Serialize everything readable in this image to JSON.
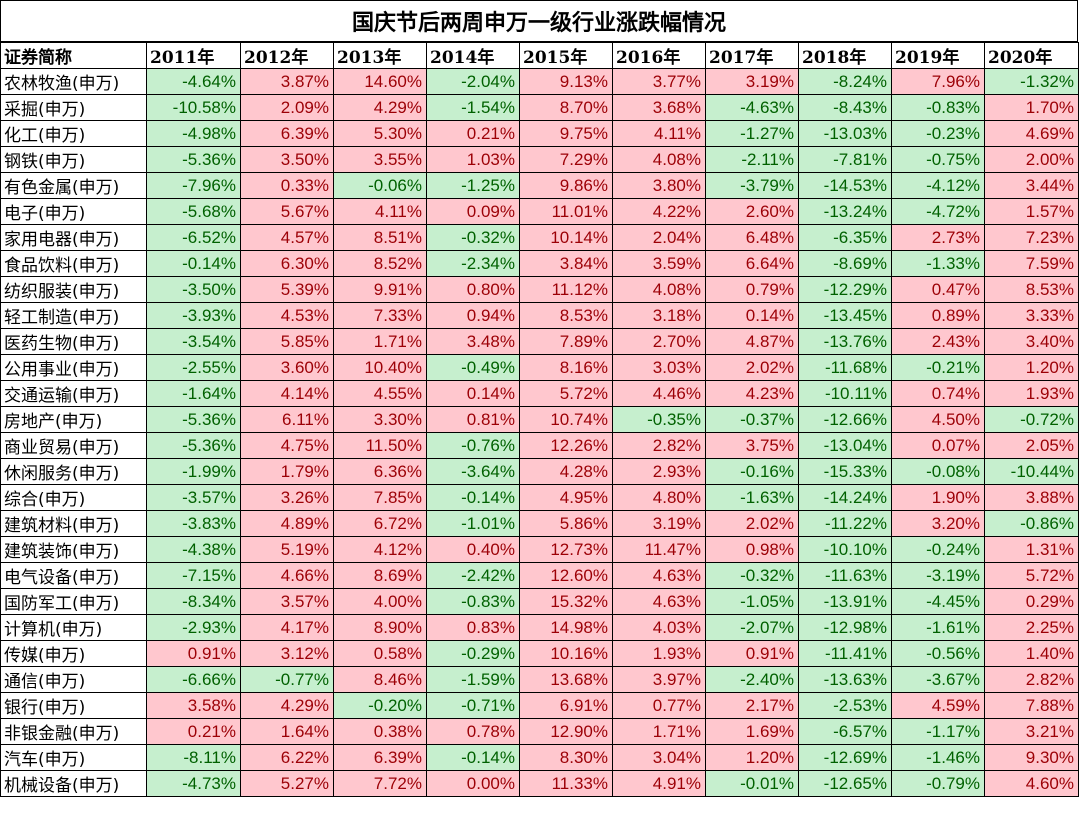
{
  "chart_data": {
    "type": "table",
    "title": "国庆节后两周申万一级行业涨跌幅情况",
    "header_first": "证券简称",
    "years": [
      "2011年",
      "2012年",
      "2013年",
      "2014年",
      "2015年",
      "2016年",
      "2017年",
      "2018年",
      "2019年",
      "2020年"
    ],
    "colors": {
      "positive_bg": "#ffc7ce",
      "positive_text": "#9c0006",
      "negative_bg": "#c6efce",
      "negative_text": "#006100"
    },
    "rows": [
      {
        "name": "农林牧渔(申万)",
        "values": [
          "-4.64%",
          "3.87%",
          "14.60%",
          "-2.04%",
          "9.13%",
          "3.77%",
          "3.19%",
          "-8.24%",
          "7.96%",
          "-1.32%"
        ]
      },
      {
        "name": "采掘(申万)",
        "values": [
          "-10.58%",
          "2.09%",
          "4.29%",
          "-1.54%",
          "8.70%",
          "3.68%",
          "-4.63%",
          "-8.43%",
          "-0.83%",
          "1.70%"
        ]
      },
      {
        "name": "化工(申万)",
        "values": [
          "-4.98%",
          "6.39%",
          "5.30%",
          "0.21%",
          "9.75%",
          "4.11%",
          "-1.27%",
          "-13.03%",
          "-0.23%",
          "4.69%"
        ]
      },
      {
        "name": "钢铁(申万)",
        "values": [
          "-5.36%",
          "3.50%",
          "3.55%",
          "1.03%",
          "7.29%",
          "4.08%",
          "-2.11%",
          "-7.81%",
          "-0.75%",
          "2.00%"
        ]
      },
      {
        "name": "有色金属(申万)",
        "values": [
          "-7.96%",
          "0.33%",
          "-0.06%",
          "-1.25%",
          "9.86%",
          "3.80%",
          "-3.79%",
          "-14.53%",
          "-4.12%",
          "3.44%"
        ]
      },
      {
        "name": "电子(申万)",
        "values": [
          "-5.68%",
          "5.67%",
          "4.11%",
          "0.09%",
          "11.01%",
          "4.22%",
          "2.60%",
          "-13.24%",
          "-4.72%",
          "1.57%"
        ]
      },
      {
        "name": "家用电器(申万)",
        "values": [
          "-6.52%",
          "4.57%",
          "8.51%",
          "-0.32%",
          "10.14%",
          "2.04%",
          "6.48%",
          "-6.35%",
          "2.73%",
          "7.23%"
        ]
      },
      {
        "name": "食品饮料(申万)",
        "values": [
          "-0.14%",
          "6.30%",
          "8.52%",
          "-2.34%",
          "3.84%",
          "3.59%",
          "6.64%",
          "-8.69%",
          "-1.33%",
          "7.59%"
        ]
      },
      {
        "name": "纺织服装(申万)",
        "values": [
          "-3.50%",
          "5.39%",
          "9.91%",
          "0.80%",
          "11.12%",
          "4.08%",
          "0.79%",
          "-12.29%",
          "0.47%",
          "8.53%"
        ]
      },
      {
        "name": "轻工制造(申万)",
        "values": [
          "-3.93%",
          "4.53%",
          "7.33%",
          "0.94%",
          "8.53%",
          "3.18%",
          "0.14%",
          "-13.45%",
          "0.89%",
          "3.33%"
        ]
      },
      {
        "name": "医药生物(申万)",
        "values": [
          "-3.54%",
          "5.85%",
          "1.71%",
          "3.48%",
          "7.89%",
          "2.70%",
          "4.87%",
          "-13.76%",
          "2.43%",
          "3.40%"
        ]
      },
      {
        "name": "公用事业(申万)",
        "values": [
          "-2.55%",
          "3.60%",
          "10.40%",
          "-0.49%",
          "8.16%",
          "3.03%",
          "2.02%",
          "-11.68%",
          "-0.21%",
          "1.20%"
        ]
      },
      {
        "name": "交通运输(申万)",
        "values": [
          "-1.64%",
          "4.14%",
          "4.55%",
          "0.14%",
          "5.72%",
          "4.46%",
          "4.23%",
          "-10.11%",
          "0.74%",
          "1.93%"
        ]
      },
      {
        "name": "房地产(申万)",
        "values": [
          "-5.36%",
          "6.11%",
          "3.30%",
          "0.81%",
          "10.74%",
          "-0.35%",
          "-0.37%",
          "-12.66%",
          "4.50%",
          "-0.72%"
        ]
      },
      {
        "name": "商业贸易(申万)",
        "values": [
          "-5.36%",
          "4.75%",
          "11.50%",
          "-0.76%",
          "12.26%",
          "2.82%",
          "3.75%",
          "-13.04%",
          "0.07%",
          "2.05%"
        ]
      },
      {
        "name": "休闲服务(申万)",
        "values": [
          "-1.99%",
          "1.79%",
          "6.36%",
          "-3.64%",
          "4.28%",
          "2.93%",
          "-0.16%",
          "-15.33%",
          "-0.08%",
          "-10.44%"
        ]
      },
      {
        "name": "综合(申万)",
        "values": [
          "-3.57%",
          "3.26%",
          "7.85%",
          "-0.14%",
          "4.95%",
          "4.80%",
          "-1.63%",
          "-14.24%",
          "1.90%",
          "3.88%"
        ]
      },
      {
        "name": "建筑材料(申万)",
        "values": [
          "-3.83%",
          "4.89%",
          "6.72%",
          "-1.01%",
          "5.86%",
          "3.19%",
          "2.02%",
          "-11.22%",
          "3.20%",
          "-0.86%"
        ]
      },
      {
        "name": "建筑装饰(申万)",
        "values": [
          "-4.38%",
          "5.19%",
          "4.12%",
          "0.40%",
          "12.73%",
          "11.47%",
          "0.98%",
          "-10.10%",
          "-0.24%",
          "1.31%"
        ]
      },
      {
        "name": "电气设备(申万)",
        "values": [
          "-7.15%",
          "4.66%",
          "8.69%",
          "-2.42%",
          "12.60%",
          "4.63%",
          "-0.32%",
          "-11.63%",
          "-3.19%",
          "5.72%"
        ]
      },
      {
        "name": "国防军工(申万)",
        "values": [
          "-8.34%",
          "3.57%",
          "4.00%",
          "-0.83%",
          "15.32%",
          "4.63%",
          "-1.05%",
          "-13.91%",
          "-4.45%",
          "0.29%"
        ]
      },
      {
        "name": "计算机(申万)",
        "values": [
          "-2.93%",
          "4.17%",
          "8.90%",
          "0.83%",
          "14.98%",
          "4.03%",
          "-2.07%",
          "-12.98%",
          "-1.61%",
          "2.25%"
        ]
      },
      {
        "name": "传媒(申万)",
        "values": [
          "0.91%",
          "3.12%",
          "0.58%",
          "-0.29%",
          "10.16%",
          "1.93%",
          "0.91%",
          "-11.41%",
          "-0.56%",
          "1.40%"
        ]
      },
      {
        "name": "通信(申万)",
        "values": [
          "-6.66%",
          "-0.77%",
          "8.46%",
          "-1.59%",
          "13.68%",
          "3.97%",
          "-2.40%",
          "-13.63%",
          "-3.67%",
          "2.82%"
        ]
      },
      {
        "name": "银行(申万)",
        "values": [
          "3.58%",
          "4.29%",
          "-0.20%",
          "-0.71%",
          "6.91%",
          "0.77%",
          "2.17%",
          "-2.53%",
          "4.59%",
          "7.88%"
        ]
      },
      {
        "name": "非银金融(申万)",
        "values": [
          "0.21%",
          "1.64%",
          "0.38%",
          "0.78%",
          "12.90%",
          "1.71%",
          "1.69%",
          "-6.57%",
          "-1.17%",
          "3.21%"
        ]
      },
      {
        "name": "汽车(申万)",
        "values": [
          "-8.11%",
          "6.22%",
          "6.39%",
          "-0.14%",
          "8.30%",
          "3.04%",
          "1.20%",
          "-12.69%",
          "-1.46%",
          "9.30%"
        ]
      },
      {
        "name": "机械设备(申万)",
        "values": [
          "-4.73%",
          "5.27%",
          "7.72%",
          "0.00%",
          "11.33%",
          "4.91%",
          "-0.01%",
          "-12.65%",
          "-0.79%",
          "4.60%"
        ]
      }
    ]
  }
}
